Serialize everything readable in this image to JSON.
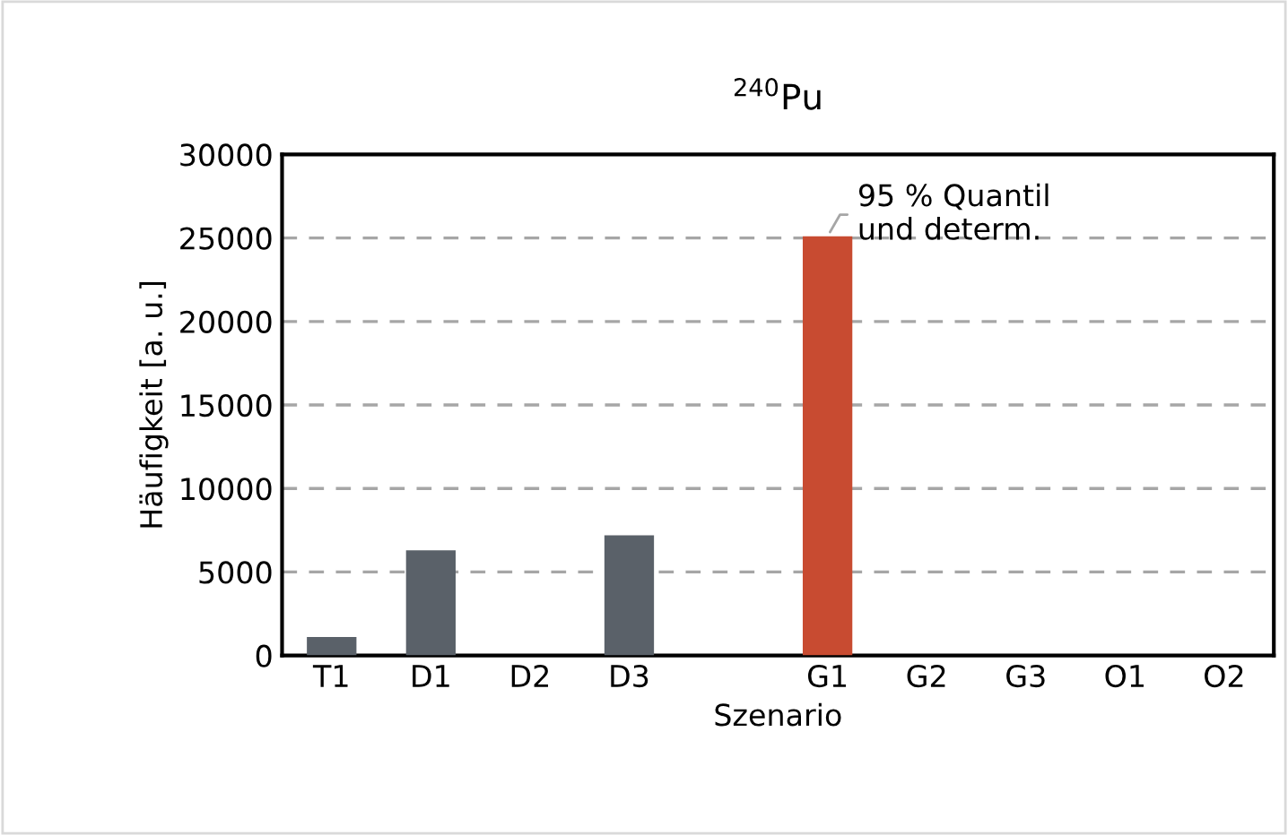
{
  "chart_data": {
    "type": "bar",
    "title": "$^{240}$Pu",
    "xlabel": "Szenario",
    "ylabel": "Häufigkeit [a. u.]",
    "categories": [
      "T1",
      "D1",
      "D2",
      "D3",
      null,
      "G1",
      "G2",
      "G3",
      "O1",
      "O2"
    ],
    "values": [
      1100,
      6300,
      null,
      7200,
      null,
      25100,
      null,
      null,
      null,
      null
    ],
    "colors": [
      "#5a6169",
      "#5a6169",
      "#5a6169",
      "#5a6169",
      "#5a6169",
      "#c84b31",
      "#5a6169",
      "#5a6169",
      "#5a6169",
      "#5a6169"
    ],
    "ylim": [
      0,
      30000
    ],
    "yticks": [
      0,
      5000,
      10000,
      15000,
      20000,
      25000,
      30000
    ],
    "grid": "y",
    "annotations": [
      {
        "text": "95 % Quantil\nund determ.",
        "x": "G1",
        "y": 25100
      }
    ]
  }
}
